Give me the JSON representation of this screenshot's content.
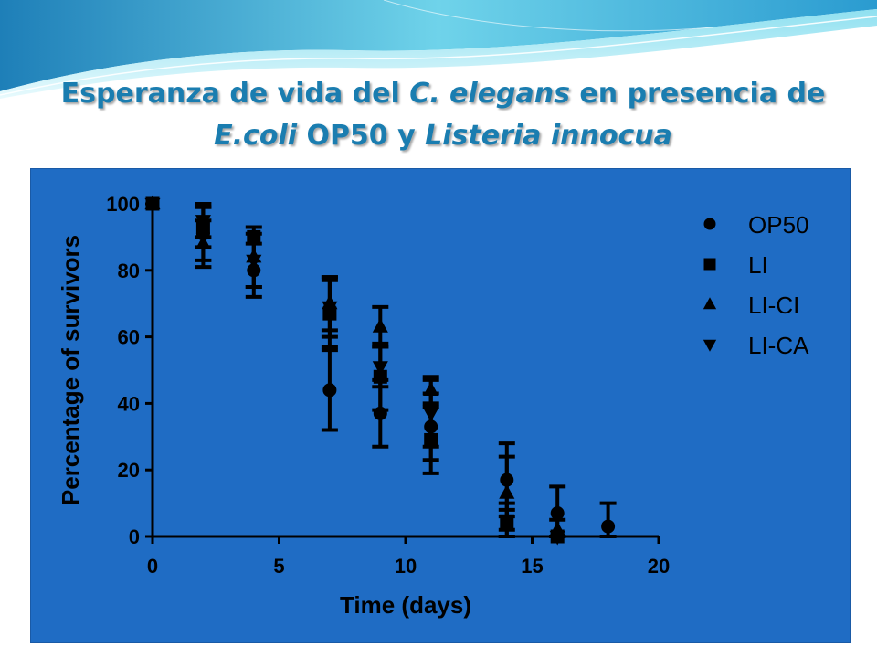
{
  "slide": {
    "title_line1": [
      {
        "text": "Esperanza de vida del ",
        "italic": false
      },
      {
        "text": "C. elegans",
        "italic": true
      },
      {
        "text": " en presencia de",
        "italic": false
      }
    ],
    "title_line2": [
      {
        "text": "E.coli",
        "italic": true
      },
      {
        "text": " OP50 y ",
        "italic": false
      },
      {
        "text": "Listeria innocua",
        "italic": true
      }
    ],
    "colors": {
      "title": "#1a7db0",
      "panel": "#1f6cc4",
      "marks": "#000000"
    }
  },
  "chart_data": {
    "type": "scatter",
    "xlabel": "Time (days)",
    "ylabel": "Percentage of survivors",
    "xlim": [
      0,
      20
    ],
    "ylim": [
      0,
      100
    ],
    "xticks": [
      0,
      5,
      10,
      15,
      20
    ],
    "yticks": [
      0,
      20,
      40,
      60,
      80,
      100
    ],
    "legend_position": "top-right",
    "error_bars": true,
    "series": [
      {
        "name": "OP50",
        "marker": "circle",
        "points": [
          {
            "x": 0,
            "y": 100,
            "err": 0
          },
          {
            "x": 2,
            "y": 91,
            "err": 8
          },
          {
            "x": 4,
            "y": 80,
            "err": 8
          },
          {
            "x": 7,
            "y": 44,
            "err": 12
          },
          {
            "x": 9,
            "y": 37,
            "err": 10
          },
          {
            "x": 11,
            "y": 33,
            "err": 10
          },
          {
            "x": 14,
            "y": 17,
            "err": 11
          },
          {
            "x": 16,
            "y": 7,
            "err": 8
          },
          {
            "x": 18,
            "y": 3,
            "err": 7
          }
        ]
      },
      {
        "name": "LI",
        "marker": "square",
        "points": [
          {
            "x": 0,
            "y": 100,
            "err": 0
          },
          {
            "x": 2,
            "y": 93,
            "err": 6
          },
          {
            "x": 4,
            "y": 90,
            "err": 0
          },
          {
            "x": 7,
            "y": 67,
            "err": 10
          },
          {
            "x": 9,
            "y": 48,
            "err": 10
          },
          {
            "x": 11,
            "y": 29,
            "err": 10
          },
          {
            "x": 14,
            "y": 4,
            "err": 4
          },
          {
            "x": 16,
            "y": 0,
            "err": 0
          }
        ]
      },
      {
        "name": "LI-CI",
        "marker": "triangle-up",
        "points": [
          {
            "x": 0,
            "y": 100,
            "err": 0
          },
          {
            "x": 2,
            "y": 88,
            "err": 7
          },
          {
            "x": 4,
            "y": 84,
            "err": 9
          },
          {
            "x": 7,
            "y": 70,
            "err": 8
          },
          {
            "x": 9,
            "y": 63,
            "err": 6
          },
          {
            "x": 11,
            "y": 44,
            "err": 4
          },
          {
            "x": 14,
            "y": 13,
            "err": 11
          },
          {
            "x": 16,
            "y": 2,
            "err": 3
          }
        ]
      },
      {
        "name": "LI-CA",
        "marker": "triangle-down",
        "points": [
          {
            "x": 0,
            "y": 100,
            "err": 0
          },
          {
            "x": 2,
            "y": 95,
            "err": 5
          },
          {
            "x": 4,
            "y": 83,
            "err": 8
          },
          {
            "x": 7,
            "y": 69,
            "err": 9
          },
          {
            "x": 9,
            "y": 51,
            "err": 6
          },
          {
            "x": 11,
            "y": 37,
            "err": 10
          },
          {
            "x": 14,
            "y": 5,
            "err": 5
          },
          {
            "x": 16,
            "y": 0,
            "err": 0
          }
        ]
      }
    ]
  }
}
